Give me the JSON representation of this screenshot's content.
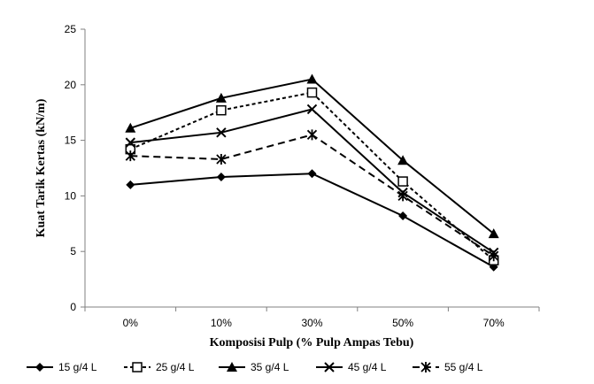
{
  "chart_data": {
    "type": "line",
    "title": "",
    "xlabel": "Komposisi Pulp (% Pulp Ampas Tebu)",
    "ylabel": "Kuat Tarik Kertas (kN/m)",
    "categories": [
      "0%",
      "10%",
      "30%",
      "50%",
      "70%"
    ],
    "ylim": [
      0,
      25
    ],
    "yticks": [
      "0",
      "5",
      "10",
      "15",
      "20",
      "25"
    ],
    "grid": false,
    "legend_position": "bottom",
    "series": [
      {
        "name": "15 g/4 L",
        "values": [
          11.0,
          11.7,
          12.0,
          8.2,
          3.6
        ],
        "marker": "diamond",
        "dash": "solid",
        "color": "#000000"
      },
      {
        "name": "25 g/4 L",
        "values": [
          14.2,
          17.7,
          19.3,
          11.3,
          4.2
        ],
        "marker": "square-open",
        "dash": "short-dash",
        "color": "#000000"
      },
      {
        "name": "35 g/4 L",
        "values": [
          16.1,
          18.8,
          20.5,
          13.2,
          6.6
        ],
        "marker": "triangle",
        "dash": "solid",
        "color": "#000000"
      },
      {
        "name": "45 g/4 L",
        "values": [
          14.8,
          15.7,
          17.8,
          10.3,
          4.9
        ],
        "marker": "x",
        "dash": "solid",
        "color": "#000000"
      },
      {
        "name": "55 g/4 L",
        "values": [
          13.6,
          13.3,
          15.5,
          10.0,
          4.6
        ],
        "marker": "star",
        "dash": "long-dash",
        "color": "#000000"
      }
    ]
  }
}
